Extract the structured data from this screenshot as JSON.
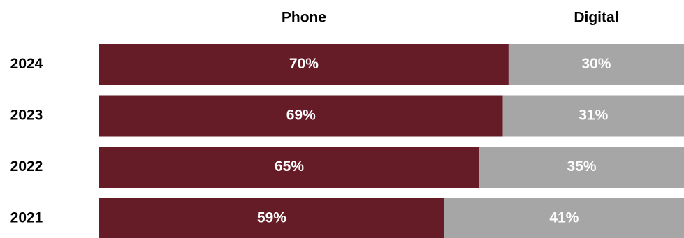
{
  "chart_data": {
    "type": "bar",
    "orientation": "horizontal",
    "stacked": true,
    "normalized": true,
    "categories": [
      "2024",
      "2023",
      "2022",
      "2021"
    ],
    "series": [
      {
        "name": "Phone",
        "values": [
          70,
          69,
          65,
          59
        ],
        "labels": [
          "70%",
          "69%",
          "65%",
          "59%"
        ],
        "color": "#661c27"
      },
      {
        "name": "Digital",
        "values": [
          30,
          31,
          35,
          41
        ],
        "labels": [
          "30%",
          "31%",
          "35%",
          "41%"
        ],
        "color": "#a6a6a6"
      }
    ],
    "xlim": [
      0,
      100
    ],
    "grid": false,
    "legend_position": "top"
  }
}
